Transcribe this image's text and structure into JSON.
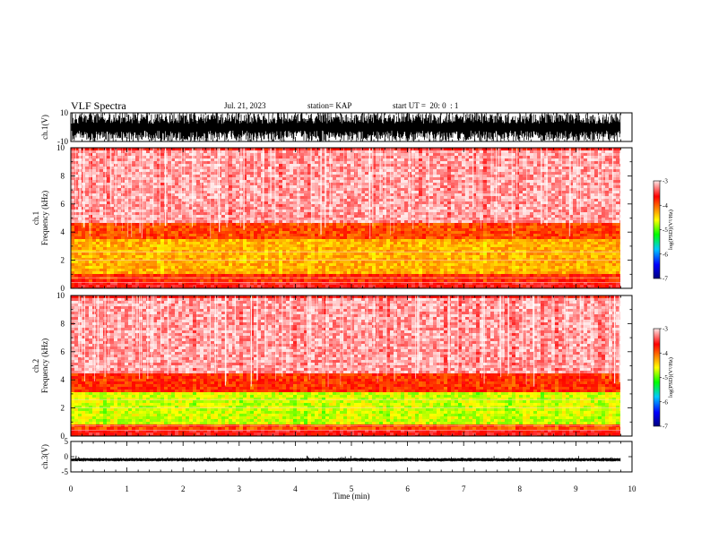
{
  "header": {
    "title": "VLF Spectra",
    "date": "Jul. 21, 2023",
    "station": "station= KAP",
    "start": "start UT =  20: 0  : 1"
  },
  "colors": {
    "colormap": [
      "#000080",
      "#0000ff",
      "#00c8ff",
      "#00ff00",
      "#ffff00",
      "#ff8000",
      "#ff0000",
      "#ffe8e8"
    ],
    "waveform": "#000000"
  },
  "chart_data": [
    {
      "type": "line",
      "ylabel": "ch.1(V)",
      "ylim": [
        -10,
        10
      ],
      "yticks": [
        "10",
        "-10"
      ],
      "xlim": [
        0,
        10
      ],
      "description_values": {
        "amplitude_range": [
          -8,
          8
        ]
      }
    },
    {
      "type": "heatmap",
      "ylabel_line1": "ch.1",
      "ylabel_line2": "Frequency (kHz)",
      "ylim": [
        0,
        10
      ],
      "yticks": [
        "0",
        "2",
        "4",
        "6",
        "8",
        "10"
      ],
      "xlim": [
        0,
        9.85
      ],
      "colorbar": {
        "label": "log(PSD)(V²/Hz)",
        "range": [
          -7,
          -3
        ],
        "ticks": [
          "-3",
          "-4",
          "-5",
          "-6",
          "-7"
        ]
      },
      "bands": [
        {
          "freq_range_khz": [
            0.5,
            1.2
          ],
          "log_psd": -3.8
        },
        {
          "freq_range_khz": [
            1.2,
            3.6
          ],
          "log_psd": -4.3
        },
        {
          "freq_range_khz": [
            3.6,
            4.8
          ],
          "log_psd": -3.9
        },
        {
          "freq_range_khz": [
            4.8,
            10
          ],
          "log_psd": -3.2
        }
      ]
    },
    {
      "type": "heatmap",
      "ylabel_line1": "ch.2",
      "ylabel_line2": "Frequency (kHz)",
      "ylim": [
        0,
        10
      ],
      "yticks": [
        "0",
        "2",
        "4",
        "6",
        "8",
        "10"
      ],
      "xlim": [
        0,
        9.85
      ],
      "colorbar": {
        "label": "log(PSD)(V²/Hz)",
        "range": [
          -7,
          -3
        ],
        "ticks": [
          "-3",
          "-4",
          "-5",
          "-6",
          "-7"
        ]
      },
      "bands": [
        {
          "freq_range_khz": [
            0.5,
            1.0
          ],
          "log_psd": -3.9
        },
        {
          "freq_range_khz": [
            1.0,
            3.2
          ],
          "log_psd": -4.7
        },
        {
          "freq_range_khz": [
            3.2,
            4.5
          ],
          "log_psd": -3.8
        },
        {
          "freq_range_khz": [
            4.5,
            10
          ],
          "log_psd": -3.2
        }
      ]
    },
    {
      "type": "line",
      "ylabel": "ch.3(V)",
      "ylim": [
        -5,
        5
      ],
      "yticks": [
        "5",
        "0",
        "-5"
      ],
      "xlim": [
        0,
        10
      ],
      "description_values": {
        "mean": -1,
        "amplitude_range": [
          -1.3,
          -0.7
        ]
      }
    }
  ],
  "xaxis": {
    "label": "Time (min)",
    "ticks": [
      "0",
      "1",
      "2",
      "3",
      "4",
      "5",
      "6",
      "7",
      "8",
      "9",
      "10"
    ]
  }
}
